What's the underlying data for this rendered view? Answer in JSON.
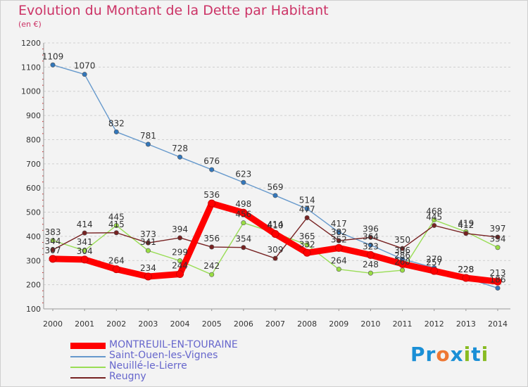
{
  "title": "Evolution du Montant de la Dette par Habitant",
  "subtitle": "(en €)",
  "logo": {
    "text": "Proxiti",
    "letter_colors": [
      "#1a8fd6",
      "#1a8fd6",
      "#ee7733",
      "#1a8fd6",
      "#88bb22",
      "#1a8fd6",
      "#88bb22"
    ]
  },
  "chart_data": {
    "type": "line",
    "title": "Evolution du Montant de la Dette par Habitant",
    "ylabel": "(en €)",
    "xlabel": "",
    "x": [
      "2000",
      "2001",
      "2002",
      "2003",
      "2004",
      "2005",
      "2006",
      "2007",
      "2008",
      "2009",
      "2010",
      "2011",
      "2012",
      "2013",
      "2014"
    ],
    "ylim": [
      100,
      1200
    ],
    "yticks": [
      100,
      200,
      300,
      400,
      500,
      600,
      700,
      800,
      900,
      1000,
      1100,
      1200
    ],
    "grid": "horizontal dashed",
    "legend_position": "bottom-left",
    "series": [
      {
        "name": "MONTREUIL-EN-TOURAINE",
        "color": "#ff0000",
        "marker_fill": "#ff0000",
        "values": [
          307,
          304,
          264,
          234,
          244,
          536,
          498,
          410,
          332,
          352,
          323,
          286,
          257,
          228,
          213
        ]
      },
      {
        "name": "Saint-Ouen-les-Vignes",
        "color": "#6699cc",
        "marker_fill": "#3377bb",
        "values": [
          1109,
          1070,
          832,
          781,
          728,
          676,
          623,
          569,
          514,
          417,
          364,
          306,
          270,
          228,
          186
        ]
      },
      {
        "name": "Neuillé-le-Lierre",
        "color": "#99dd55",
        "marker_fill": "#99dd44",
        "values": [
          383,
          341,
          445,
          341,
          299,
          242,
          456,
          414,
          365,
          264,
          248,
          260,
          468,
          419,
          354
        ]
      },
      {
        "name": "Reugny",
        "color": "#772222",
        "marker_fill": "#772222",
        "values": [
          344,
          414,
          415,
          373,
          394,
          356,
          354,
          309,
          477,
          382,
          396,
          350,
          445,
          412,
          397
        ]
      }
    ]
  }
}
